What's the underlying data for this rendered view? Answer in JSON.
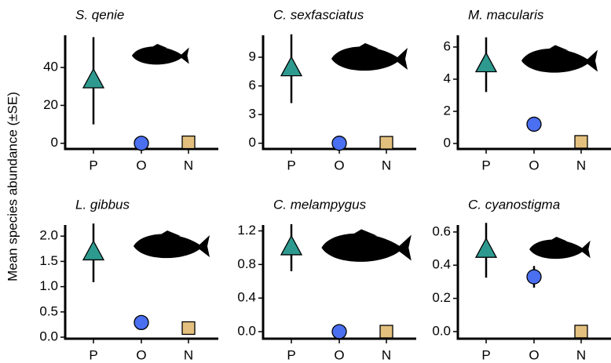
{
  "ylabel": "Mean species abundance (±SE)",
  "chart_data": [
    {
      "type": "point",
      "title": "S. qenie",
      "categories": [
        "P",
        "O",
        "N"
      ],
      "values": [
        33,
        0,
        0.5
      ],
      "errors": [
        23,
        0,
        0
      ],
      "colors": [
        "#2e9a8f",
        "#4a6ff0",
        "#e3c07e"
      ],
      "markers": [
        "triangle",
        "circle",
        "square"
      ],
      "ylim": [
        -3,
        57
      ],
      "yticks": [
        0,
        20,
        40
      ]
    },
    {
      "type": "point",
      "title": "C. sexfasciatus",
      "categories": [
        "P",
        "O",
        "N"
      ],
      "values": [
        7.8,
        0,
        0.05
      ],
      "errors": [
        3.6,
        0,
        0
      ],
      "colors": [
        "#2e9a8f",
        "#4a6ff0",
        "#e3c07e"
      ],
      "markers": [
        "triangle",
        "circle",
        "square"
      ],
      "ylim": [
        -0.6,
        11.3
      ],
      "yticks": [
        0,
        3,
        6,
        9
      ]
    },
    {
      "type": "point",
      "title": "M. macularis",
      "categories": [
        "P",
        "O",
        "N"
      ],
      "values": [
        4.9,
        1.2,
        0.1
      ],
      "errors": [
        1.7,
        0,
        0
      ],
      "colors": [
        "#2e9a8f",
        "#4a6ff0",
        "#e3c07e"
      ],
      "markers": [
        "triangle",
        "circle",
        "square"
      ],
      "ylim": [
        -0.34,
        6.73
      ],
      "yticks": [
        0,
        2,
        4,
        6
      ]
    },
    {
      "type": "point",
      "title": "L. gibbus",
      "categories": [
        "P",
        "O",
        "N"
      ],
      "values": [
        1.67,
        0.29,
        0.18
      ],
      "errors": [
        0.58,
        0,
        0
      ],
      "colors": [
        "#2e9a8f",
        "#4a6ff0",
        "#e3c07e"
      ],
      "markers": [
        "triangle",
        "circle",
        "square"
      ],
      "ylim": [
        -0.03,
        2.22
      ],
      "yticks": [
        {
          "value": 0,
          "label": "0.0"
        },
        {
          "value": 0.5,
          "label": "0.5"
        },
        {
          "value": 1,
          "label": "1.0"
        },
        {
          "value": 1.5,
          "label": "1.5"
        },
        {
          "value": 2,
          "label": "2.0"
        }
      ]
    },
    {
      "type": "point",
      "title": "C. melampygus",
      "categories": [
        "P",
        "O",
        "N"
      ],
      "values": [
        1.0,
        0,
        0
      ],
      "errors": [
        0.28,
        0,
        0
      ],
      "colors": [
        "#2e9a8f",
        "#4a6ff0",
        "#e3c07e"
      ],
      "markers": [
        "triangle",
        "circle",
        "square"
      ],
      "ylim": [
        -0.084,
        1.27
      ],
      "yticks": [
        {
          "value": 0,
          "label": "0.0"
        },
        0.4,
        0.8,
        1.2
      ]
    },
    {
      "type": "point",
      "title": "C. cyanostigma",
      "categories": [
        "P",
        "O",
        "N"
      ],
      "values": [
        0.49,
        0.33,
        0
      ],
      "errors": [
        0.165,
        0.065,
        0
      ],
      "colors": [
        "#2e9a8f",
        "#4a6ff0",
        "#e3c07e"
      ],
      "markers": [
        "triangle",
        "circle",
        "square"
      ],
      "ylim": [
        -0.043,
        0.642
      ],
      "yticks": [
        {
          "value": 0,
          "label": "0.0"
        },
        0.2,
        0.4,
        0.6
      ]
    }
  ]
}
